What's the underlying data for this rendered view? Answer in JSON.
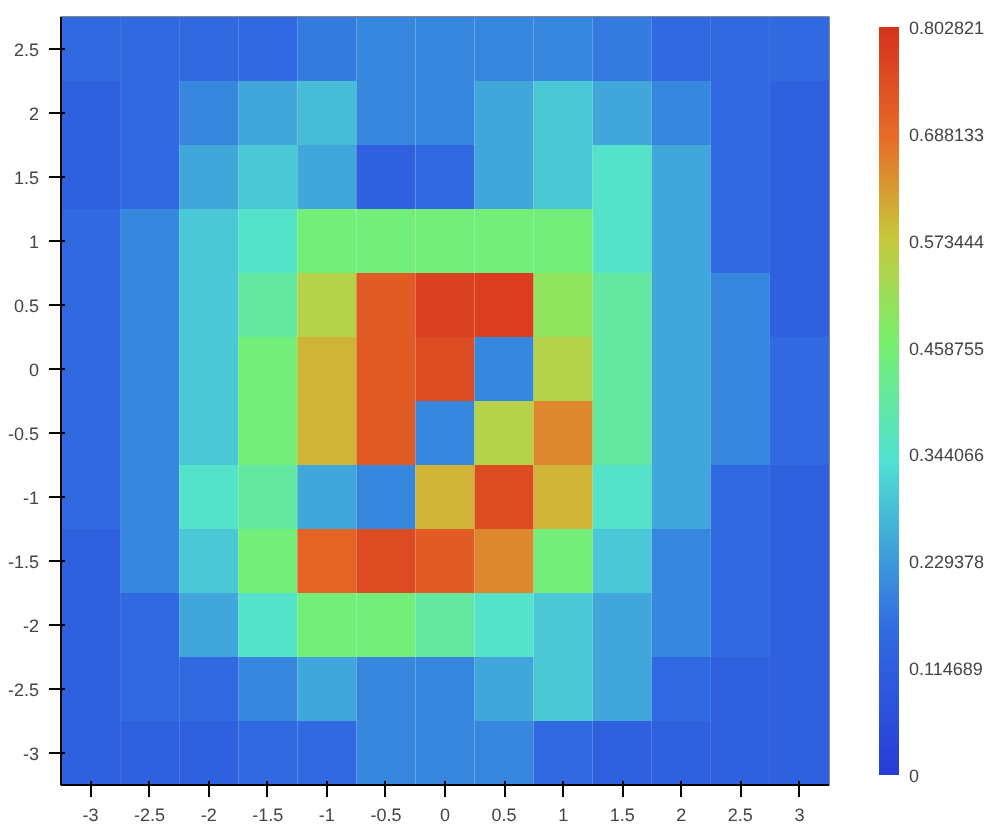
{
  "chart_data": {
    "type": "heatmap",
    "categories": [
      "-3",
      "-2.5",
      "-2",
      "-1.5",
      "-1",
      "-0.5",
      "0",
      "0.5",
      "1",
      "1.5",
      "2",
      "2.5",
      "3"
    ],
    "y_categories": [
      "2.5",
      "2",
      "1.5",
      "1",
      "0.5",
      "0",
      "-0.5",
      "-1",
      "-1.5",
      "-2",
      "-2.5",
      "-3"
    ],
    "cells": [
      [
        0.15,
        0.15,
        0.15,
        0.15,
        0.18,
        0.2,
        0.2,
        0.2,
        0.2,
        0.18,
        0.15,
        0.15,
        0.15
      ],
      [
        0.12,
        0.15,
        0.2,
        0.25,
        0.28,
        0.2,
        0.2,
        0.25,
        0.3,
        0.25,
        0.2,
        0.15,
        0.12
      ],
      [
        0.12,
        0.15,
        0.25,
        0.3,
        0.25,
        0.12,
        0.15,
        0.25,
        0.3,
        0.35,
        0.25,
        0.15,
        0.12
      ],
      [
        0.15,
        0.2,
        0.3,
        0.35,
        0.45,
        0.45,
        0.45,
        0.45,
        0.45,
        0.35,
        0.25,
        0.15,
        0.12
      ],
      [
        0.15,
        0.2,
        0.3,
        0.4,
        0.55,
        0.72,
        0.77,
        0.78,
        0.5,
        0.4,
        0.25,
        0.2,
        0.12
      ],
      [
        0.15,
        0.2,
        0.3,
        0.45,
        0.6,
        0.72,
        0.75,
        0.2,
        0.55,
        0.4,
        0.25,
        0.2,
        0.15
      ],
      [
        0.15,
        0.2,
        0.3,
        0.45,
        0.6,
        0.72,
        0.2,
        0.55,
        0.65,
        0.4,
        0.25,
        0.2,
        0.15
      ],
      [
        0.15,
        0.2,
        0.35,
        0.4,
        0.25,
        0.2,
        0.6,
        0.75,
        0.6,
        0.35,
        0.25,
        0.15,
        0.12
      ],
      [
        0.12,
        0.2,
        0.3,
        0.45,
        0.7,
        0.75,
        0.72,
        0.65,
        0.45,
        0.3,
        0.2,
        0.15,
        0.12
      ],
      [
        0.12,
        0.15,
        0.25,
        0.35,
        0.45,
        0.45,
        0.4,
        0.35,
        0.3,
        0.25,
        0.2,
        0.15,
        0.12
      ],
      [
        0.12,
        0.15,
        0.15,
        0.2,
        0.25,
        0.2,
        0.2,
        0.25,
        0.3,
        0.25,
        0.15,
        0.12,
        0.12
      ],
      [
        0.12,
        0.12,
        0.12,
        0.15,
        0.15,
        0.2,
        0.2,
        0.2,
        0.15,
        0.12,
        0.12,
        0.12,
        0.12
      ]
    ],
    "clim": [
      0,
      0.802821
    ],
    "cticks": [
      0,
      0.114689,
      0.229378,
      0.344066,
      0.458755,
      0.573444,
      0.688133,
      0.802821
    ]
  }
}
